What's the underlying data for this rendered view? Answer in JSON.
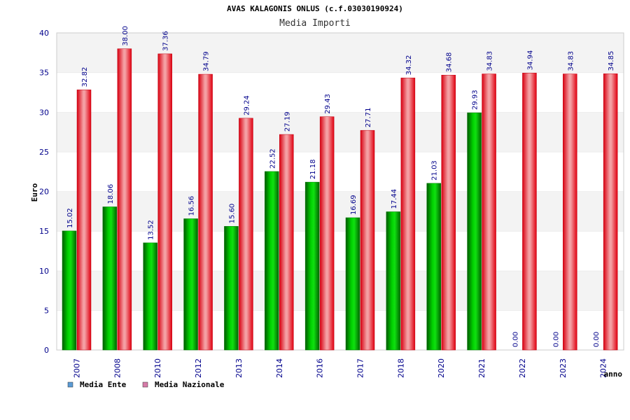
{
  "chart_data": {
    "type": "bar",
    "title": "AVAS KALAGONIS ONLUS (c.f.03030190924)",
    "subtitle": "Media Importi",
    "xlabel": "anno",
    "ylabel": "Euro",
    "ylim": [
      0,
      40
    ],
    "yticks": [
      "0",
      "5",
      "10",
      "15",
      "20",
      "25",
      "30",
      "35",
      "40"
    ],
    "grid": "horizontal-bands",
    "legend_position": "bottom-left",
    "categories": [
      "2007",
      "2008",
      "2010",
      "2012",
      "2013",
      "2014",
      "2016",
      "2017",
      "2018",
      "2020",
      "2021",
      "2022",
      "2023",
      "2024"
    ],
    "series": [
      {
        "name": "Media Ente",
        "color": "#00b400",
        "legend_color": "#5b9bd5",
        "values": [
          15.02,
          18.06,
          13.52,
          16.56,
          15.6,
          22.52,
          21.18,
          16.69,
          17.44,
          21.03,
          29.93,
          0.0,
          0.0,
          0.0
        ],
        "labels": [
          "15.02",
          "18.06",
          "13.52",
          "16.56",
          "15.60",
          "22.52",
          "21.18",
          "16.69",
          "17.44",
          "21.03",
          "29.93",
          "0.00",
          "0.00",
          "0.00"
        ]
      },
      {
        "name": "Media Nazionale",
        "color": "#e8141e",
        "legend_color": "#d67ba8",
        "values": [
          32.82,
          38.0,
          37.36,
          34.79,
          29.24,
          27.19,
          29.43,
          27.71,
          34.32,
          34.68,
          34.83,
          34.94,
          34.83,
          34.85
        ],
        "labels": [
          "32.82",
          "38.00",
          "37.36",
          "34.79",
          "29.24",
          "27.19",
          "29.43",
          "27.71",
          "34.32",
          "34.68",
          "34.83",
          "34.94",
          "34.83",
          "34.85"
        ]
      }
    ]
  }
}
